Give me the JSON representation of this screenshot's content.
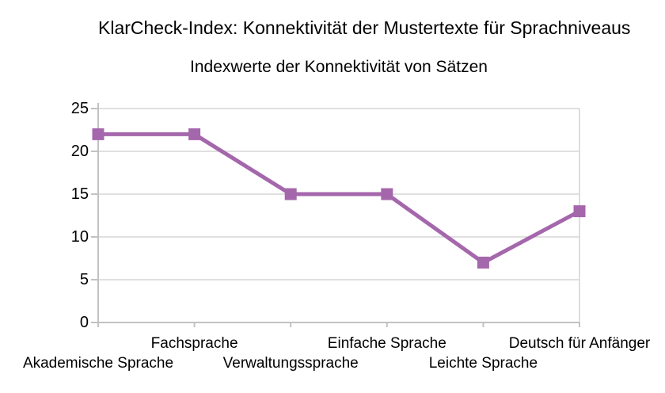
{
  "chart_data": {
    "type": "line",
    "title": "KlarCheck-Index: Konnektivität der Mustertexte für Sprachniveaus",
    "subtitle": "Indexwerte der Konnektivität von Sätzen",
    "categories": [
      "Akademische Sprache",
      "Fachsprache",
      "Verwaltungssprache",
      "Einfache Sprache",
      "Leichte Sprache",
      "Deutsch für Anfänger"
    ],
    "values": [
      22,
      22,
      15,
      15,
      7,
      13
    ],
    "yticks": [
      0,
      5,
      10,
      15,
      20,
      25
    ],
    "ylim": [
      0,
      25
    ],
    "xlabel": "",
    "ylabel": "",
    "grid": true,
    "legend": "none",
    "marker": "square",
    "colors": {
      "line": "#A567AC",
      "marker": "#A567AC",
      "gridline": "#D6D6D6",
      "axis": "#C2C2C2",
      "text": "#000000",
      "background": "#FFFFFF"
    }
  }
}
